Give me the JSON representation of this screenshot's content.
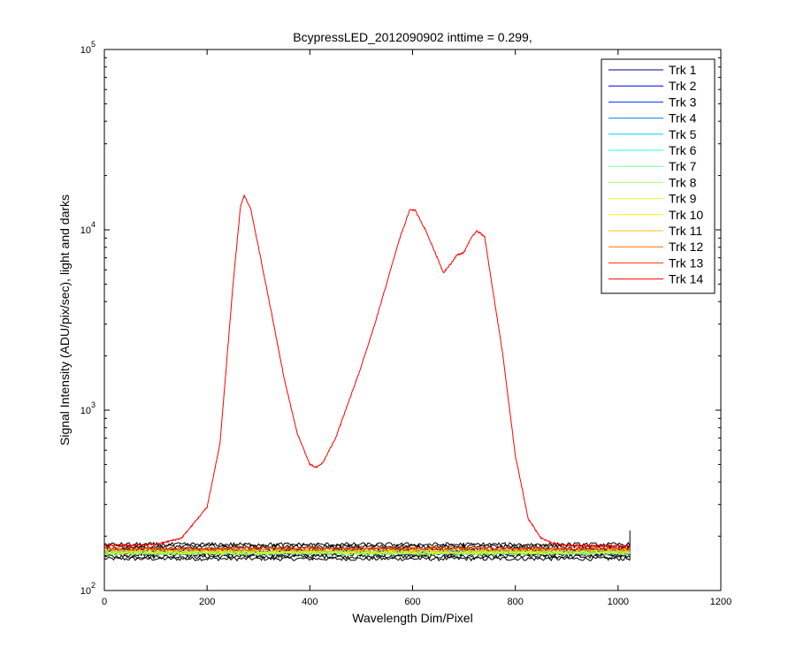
{
  "chart_data": {
    "type": "line",
    "title": "BcypressLED_2012090902 inttime = 0.299,",
    "xlabel": "Wavelength Dim/Pixel",
    "ylabel": "Signal Intensity (ADU/pix/sec), light and darks",
    "xlim": [
      0,
      1200
    ],
    "ylim": [
      100,
      100000
    ],
    "yscale": "log",
    "x_ticks": [
      "0",
      "200",
      "400",
      "600",
      "800",
      "1000",
      "1200"
    ],
    "y_ticks": [
      {
        "base": "10",
        "exp": "2"
      },
      {
        "base": "10",
        "exp": "3"
      },
      {
        "base": "10",
        "exp": "4"
      },
      {
        "base": "10",
        "exp": "5"
      }
    ],
    "grid": false,
    "legend_position": "top-right",
    "dark_baseline": {
      "color": "#000000",
      "x_range": [
        0,
        1023
      ],
      "y_band": [
        150,
        180
      ]
    },
    "series": [
      {
        "name": "Trk 1",
        "color": "#00008f",
        "level": 160
      },
      {
        "name": "Trk 2",
        "color": "#0000df",
        "level": 162
      },
      {
        "name": "Trk 3",
        "color": "#0030ff",
        "level": 163
      },
      {
        "name": "Trk 4",
        "color": "#0080ff",
        "level": 164
      },
      {
        "name": "Trk 5",
        "color": "#00cfff",
        "level": 163
      },
      {
        "name": "Trk 6",
        "color": "#20ffdf",
        "level": 162
      },
      {
        "name": "Trk 7",
        "color": "#70ff8f",
        "level": 161
      },
      {
        "name": "Trk 8",
        "color": "#9fff60",
        "level": 160
      },
      {
        "name": "Trk 9",
        "color": "#dfff20",
        "level": 162
      },
      {
        "name": "Trk 10",
        "color": "#ffef00",
        "level": 164
      },
      {
        "name": "Trk 11",
        "color": "#ffbf00",
        "level": 166
      },
      {
        "name": "Trk 12",
        "color": "#ff7000",
        "level": 170
      },
      {
        "name": "Trk 13",
        "color": "#ff3000",
        "level": 172
      },
      {
        "name": "Trk 14",
        "color": "#ff0000",
        "level": 175,
        "peak_points": [
          [
            0,
            180
          ],
          [
            50,
            178
          ],
          [
            100,
            180
          ],
          [
            150,
            195
          ],
          [
            200,
            290
          ],
          [
            225,
            650
          ],
          [
            250,
            4800
          ],
          [
            265,
            13500
          ],
          [
            272,
            15500
          ],
          [
            285,
            13000
          ],
          [
            300,
            8000
          ],
          [
            325,
            3500
          ],
          [
            350,
            1500
          ],
          [
            375,
            750
          ],
          [
            400,
            500
          ],
          [
            412,
            480
          ],
          [
            425,
            510
          ],
          [
            450,
            700
          ],
          [
            475,
            1100
          ],
          [
            500,
            1750
          ],
          [
            525,
            2900
          ],
          [
            550,
            5100
          ],
          [
            575,
            9000
          ],
          [
            595,
            13000
          ],
          [
            605,
            12800
          ],
          [
            625,
            10000
          ],
          [
            650,
            6800
          ],
          [
            660,
            5800
          ],
          [
            675,
            6500
          ],
          [
            685,
            7200
          ],
          [
            700,
            7500
          ],
          [
            712,
            8800
          ],
          [
            725,
            9900
          ],
          [
            740,
            9200
          ],
          [
            750,
            6000
          ],
          [
            775,
            2100
          ],
          [
            800,
            560
          ],
          [
            825,
            250
          ],
          [
            850,
            195
          ],
          [
            875,
            182
          ],
          [
            900,
            178
          ],
          [
            950,
            177
          ],
          [
            1000,
            177
          ],
          [
            1023,
            176
          ]
        ]
      }
    ]
  }
}
